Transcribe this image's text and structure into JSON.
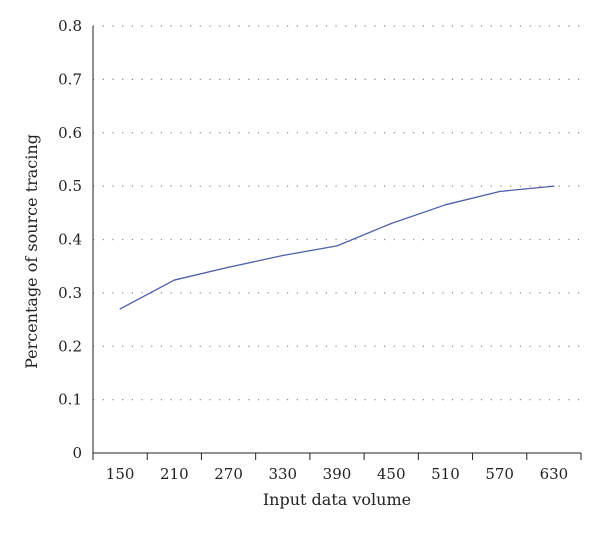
{
  "chart_data": {
    "type": "line",
    "title": "",
    "xlabel": "Input data volume",
    "ylabel": "Percentage of source tracing",
    "x_ticks": [
      "150",
      "210",
      "270",
      "330",
      "390",
      "450",
      "510",
      "570",
      "630"
    ],
    "y_ticks": [
      "0",
      "0.1",
      "0.2",
      "0.3",
      "0.4",
      "0.5",
      "0.6",
      "0.7",
      "0.8"
    ],
    "xlim": [
      120,
      660
    ],
    "ylim": [
      0,
      0.8
    ],
    "grid": {
      "horizontal": true,
      "vertical": false,
      "style": "dotted"
    },
    "legend": "none",
    "series": [
      {
        "color": "#4f5fa8",
        "x": [
          150,
          210,
          270,
          330,
          390,
          450,
          510,
          570,
          630
        ],
        "y": [
          0.27,
          0.324,
          0.348,
          0.37,
          0.388,
          0.43,
          0.465,
          0.49,
          0.5
        ]
      }
    ]
  }
}
